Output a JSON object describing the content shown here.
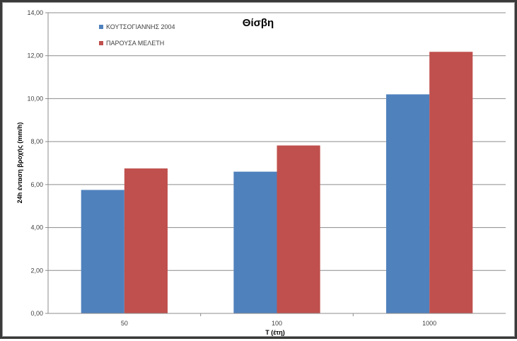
{
  "chart_data": {
    "type": "bar",
    "title": "Θίσβη",
    "xlabel": "T (έτη)",
    "ylabel": "24h ένταση βροχής (mm/h)",
    "categories": [
      "50",
      "100",
      "1000"
    ],
    "series": [
      {
        "name": "ΚΟΥΤΣΟΓΙΑΝΝΗΣ 2004",
        "values": [
          5.75,
          6.6,
          10.2
        ],
        "color": "#4F81BD"
      },
      {
        "name": "ΠΑΡΟΥΣΑ ΜΕΛΕΤΗ",
        "values": [
          6.75,
          7.82,
          12.18
        ],
        "color": "#C0504D"
      }
    ],
    "ylim": [
      0,
      14
    ],
    "yticks": [
      "0,00",
      "2,00",
      "4,00",
      "6,00",
      "8,00",
      "10,00",
      "12,00",
      "14,00"
    ],
    "grid": true,
    "legend_position": "top-left"
  }
}
